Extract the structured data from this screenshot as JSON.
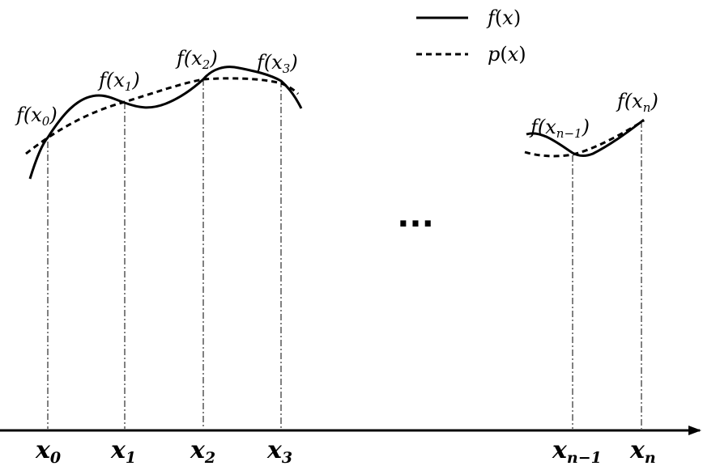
{
  "legend": {
    "solid": {
      "name": "f",
      "open": "(",
      "var": "x",
      "close": ")"
    },
    "dashed": {
      "name": "p",
      "open": "(",
      "var": "x",
      "close": ")"
    }
  },
  "ellipsis": "...",
  "nodes": [
    {
      "id": "x0",
      "axis_base": "x",
      "axis_sub": "0",
      "f_prefix": "f(",
      "f_var": "x",
      "f_sub": "0",
      "f_suffix": ")"
    },
    {
      "id": "x1",
      "axis_base": "x",
      "axis_sub": "1",
      "f_prefix": "f(",
      "f_var": "x",
      "f_sub": "1",
      "f_suffix": ")"
    },
    {
      "id": "x2",
      "axis_base": "x",
      "axis_sub": "2",
      "f_prefix": "f(",
      "f_var": "x",
      "f_sub": "2",
      "f_suffix": ")"
    },
    {
      "id": "x3",
      "axis_base": "x",
      "axis_sub": "3",
      "f_prefix": "f(",
      "f_var": "x",
      "f_sub": "3",
      "f_suffix": ")"
    },
    {
      "id": "xn-1",
      "axis_base": "x",
      "axis_sub": "n−1",
      "f_prefix": "f(",
      "f_var": "x",
      "f_sub": "n−1",
      "f_suffix": ")"
    },
    {
      "id": "xn",
      "axis_base": "x",
      "axis_sub": "n",
      "f_prefix": "f(",
      "f_var": "x",
      "f_sub": "n",
      "f_suffix": ")"
    }
  ]
}
